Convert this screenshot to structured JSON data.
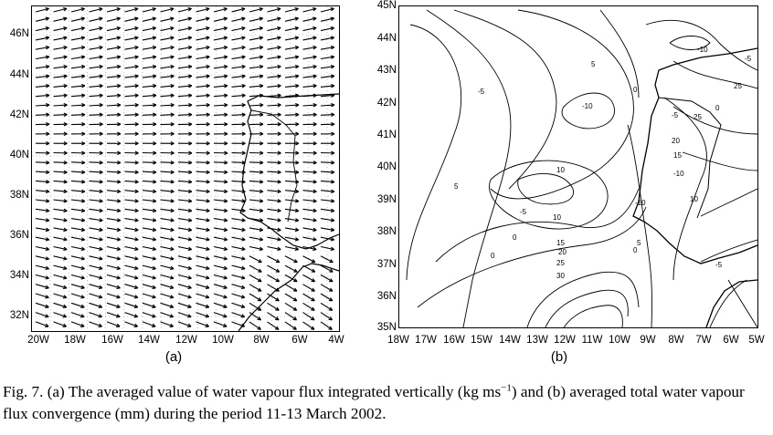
{
  "panel_a": {
    "label": "(a)",
    "y_ticks": [
      "46N",
      "44N",
      "42N",
      "40N",
      "38N",
      "36N",
      "34N",
      "32N"
    ],
    "x_ticks": [
      "20W",
      "18W",
      "16W",
      "14W",
      "12W",
      "10W",
      "8W",
      "6W",
      "4W"
    ]
  },
  "panel_b": {
    "label": "(b)",
    "y_ticks": [
      "45N",
      "44N",
      "43N",
      "42N",
      "41N",
      "40N",
      "39N",
      "38N",
      "37N",
      "36N",
      "35N"
    ],
    "x_ticks": [
      "18W",
      "17W",
      "16W",
      "15W",
      "14W",
      "13W",
      "12W",
      "11W",
      "10W",
      "9W",
      "8W",
      "7W",
      "6W",
      "5W"
    ],
    "contour_labels": [
      "5",
      "-5",
      "-10",
      "10",
      "5",
      "-5",
      "-5",
      "-10",
      "0",
      "0",
      "0",
      "5",
      "10",
      "15",
      "20",
      "25",
      "30",
      "0",
      "-5",
      "-10",
      "15",
      "20",
      "25",
      "10",
      "-10",
      "25",
      "0",
      "-5"
    ]
  },
  "caption": {
    "part1": "Fig. 7. (a) The averaged value of water vapour flux integrated vertically (kg ms",
    "sup": "−1",
    "part2": ") and (b) averaged total water vapour flux convergence (mm) during the period 11-13 March 2002."
  }
}
